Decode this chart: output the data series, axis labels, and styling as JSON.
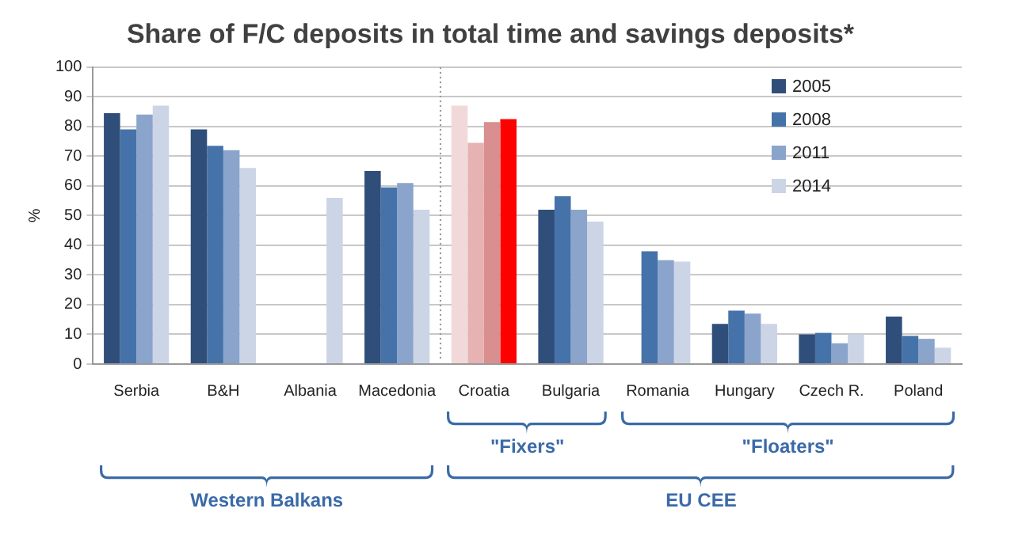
{
  "chart_data": {
    "type": "bar",
    "title": "Share of F/C deposits in total time and savings deposits*",
    "ylabel": "%",
    "categories": [
      "Serbia",
      "B&H",
      "Albania",
      "Macedonia",
      "Croatia",
      "Bulgaria",
      "Romania",
      "Hungary",
      "Czech R.",
      "Poland"
    ],
    "series": [
      {
        "name": "2005",
        "color": "#2f4f7a",
        "colors": [
          "#2f4f7a",
          "#2f4f7a",
          "#2f4f7a",
          "#2f4f7a",
          "#f2d9d9",
          "#2f4f7a",
          "#2f4f7a",
          "#2f4f7a",
          "#2f4f7a",
          "#2f4f7a"
        ],
        "values": [
          84.5,
          79,
          null,
          65,
          87,
          52,
          null,
          13.5,
          10,
          16
        ]
      },
      {
        "name": "2008",
        "color": "#4672aa",
        "colors": [
          "#4672aa",
          "#4672aa",
          "#4672aa",
          "#4672aa",
          "#e6b2b2",
          "#4672aa",
          "#4672aa",
          "#4672aa",
          "#4672aa",
          "#4672aa"
        ],
        "values": [
          79,
          73.5,
          null,
          59.5,
          74.5,
          56.5,
          38,
          18,
          10.5,
          9.5
        ]
      },
      {
        "name": "2011",
        "color": "#8aa4cc",
        "colors": [
          "#8aa4cc",
          "#8aa4cc",
          "#8aa4cc",
          "#8aa4cc",
          "#d98f8f",
          "#8aa4cc",
          "#8aa4cc",
          "#8aa4cc",
          "#8aa4cc",
          "#8aa4cc"
        ],
        "values": [
          84,
          72,
          null,
          61,
          81.5,
          52,
          35,
          17,
          7,
          8.5
        ]
      },
      {
        "name": "2014",
        "color": "#ccd5e6",
        "colors": [
          "#ccd5e6",
          "#ccd5e6",
          "#ccd5e6",
          "#ccd5e6",
          "#ff0000",
          "#ccd5e6",
          "#ccd5e6",
          "#ccd5e6",
          "#ccd5e6",
          "#ccd5e6"
        ],
        "values": [
          87,
          66,
          56,
          52,
          82.5,
          48,
          34.5,
          13.5,
          10,
          5.5
        ]
      }
    ],
    "ylim": [
      0,
      100
    ],
    "yticks": [
      0,
      10,
      20,
      30,
      40,
      50,
      60,
      70,
      80,
      90,
      100
    ],
    "grid": "y",
    "legend": "top right",
    "annotations": [
      "\"Fixers\"",
      "\"Floaters\"",
      "Western Balkans",
      "EU CEE"
    ]
  }
}
